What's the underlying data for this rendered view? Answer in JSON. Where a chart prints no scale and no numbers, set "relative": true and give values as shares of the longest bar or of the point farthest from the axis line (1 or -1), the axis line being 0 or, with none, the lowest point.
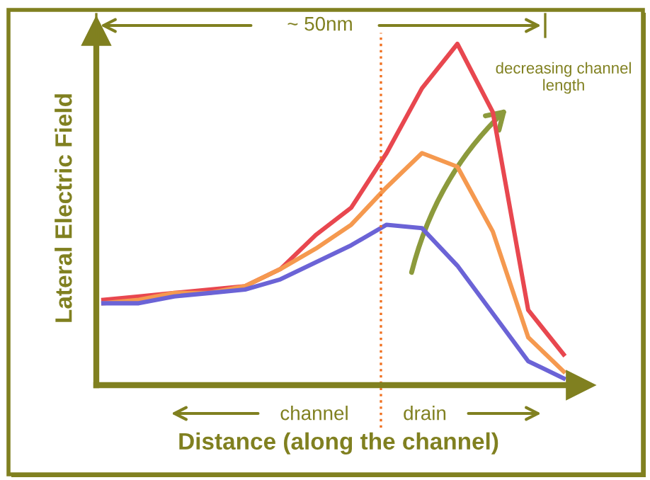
{
  "chart_data": {
    "type": "line",
    "relative": true,
    "xlabel": "Distance (along the channel)",
    "ylabel": "Lateral Electric Field",
    "categories": [
      null,
      null,
      null,
      null,
      null,
      null,
      null,
      null,
      null,
      null,
      null,
      null,
      null,
      null
    ],
    "series": [
      {
        "color": "#e8474f",
        "values": [
          0.25,
          0.26,
          0.27,
          0.28,
          0.29,
          0.34,
          0.44,
          0.52,
          0.68,
          0.87,
          1.0,
          0.8,
          0.22,
          0.09
        ]
      },
      {
        "color": "#f5994f",
        "values": [
          0.24,
          0.25,
          0.27,
          0.27,
          0.29,
          0.34,
          0.4,
          0.47,
          0.58,
          0.68,
          0.64,
          0.45,
          0.14,
          0.04
        ]
      },
      {
        "color": "#6b63d6",
        "values": [
          0.24,
          0.24,
          0.26,
          0.27,
          0.28,
          0.31,
          0.36,
          0.41,
          0.47,
          0.46,
          0.35,
          0.21,
          0.07,
          0.02
        ]
      }
    ],
    "annotations": [
      "~ 50nm",
      "decreasing channel length",
      "channel",
      "drain"
    ],
    "legend": false,
    "marker": "none",
    "line_style": "solid"
  }
}
